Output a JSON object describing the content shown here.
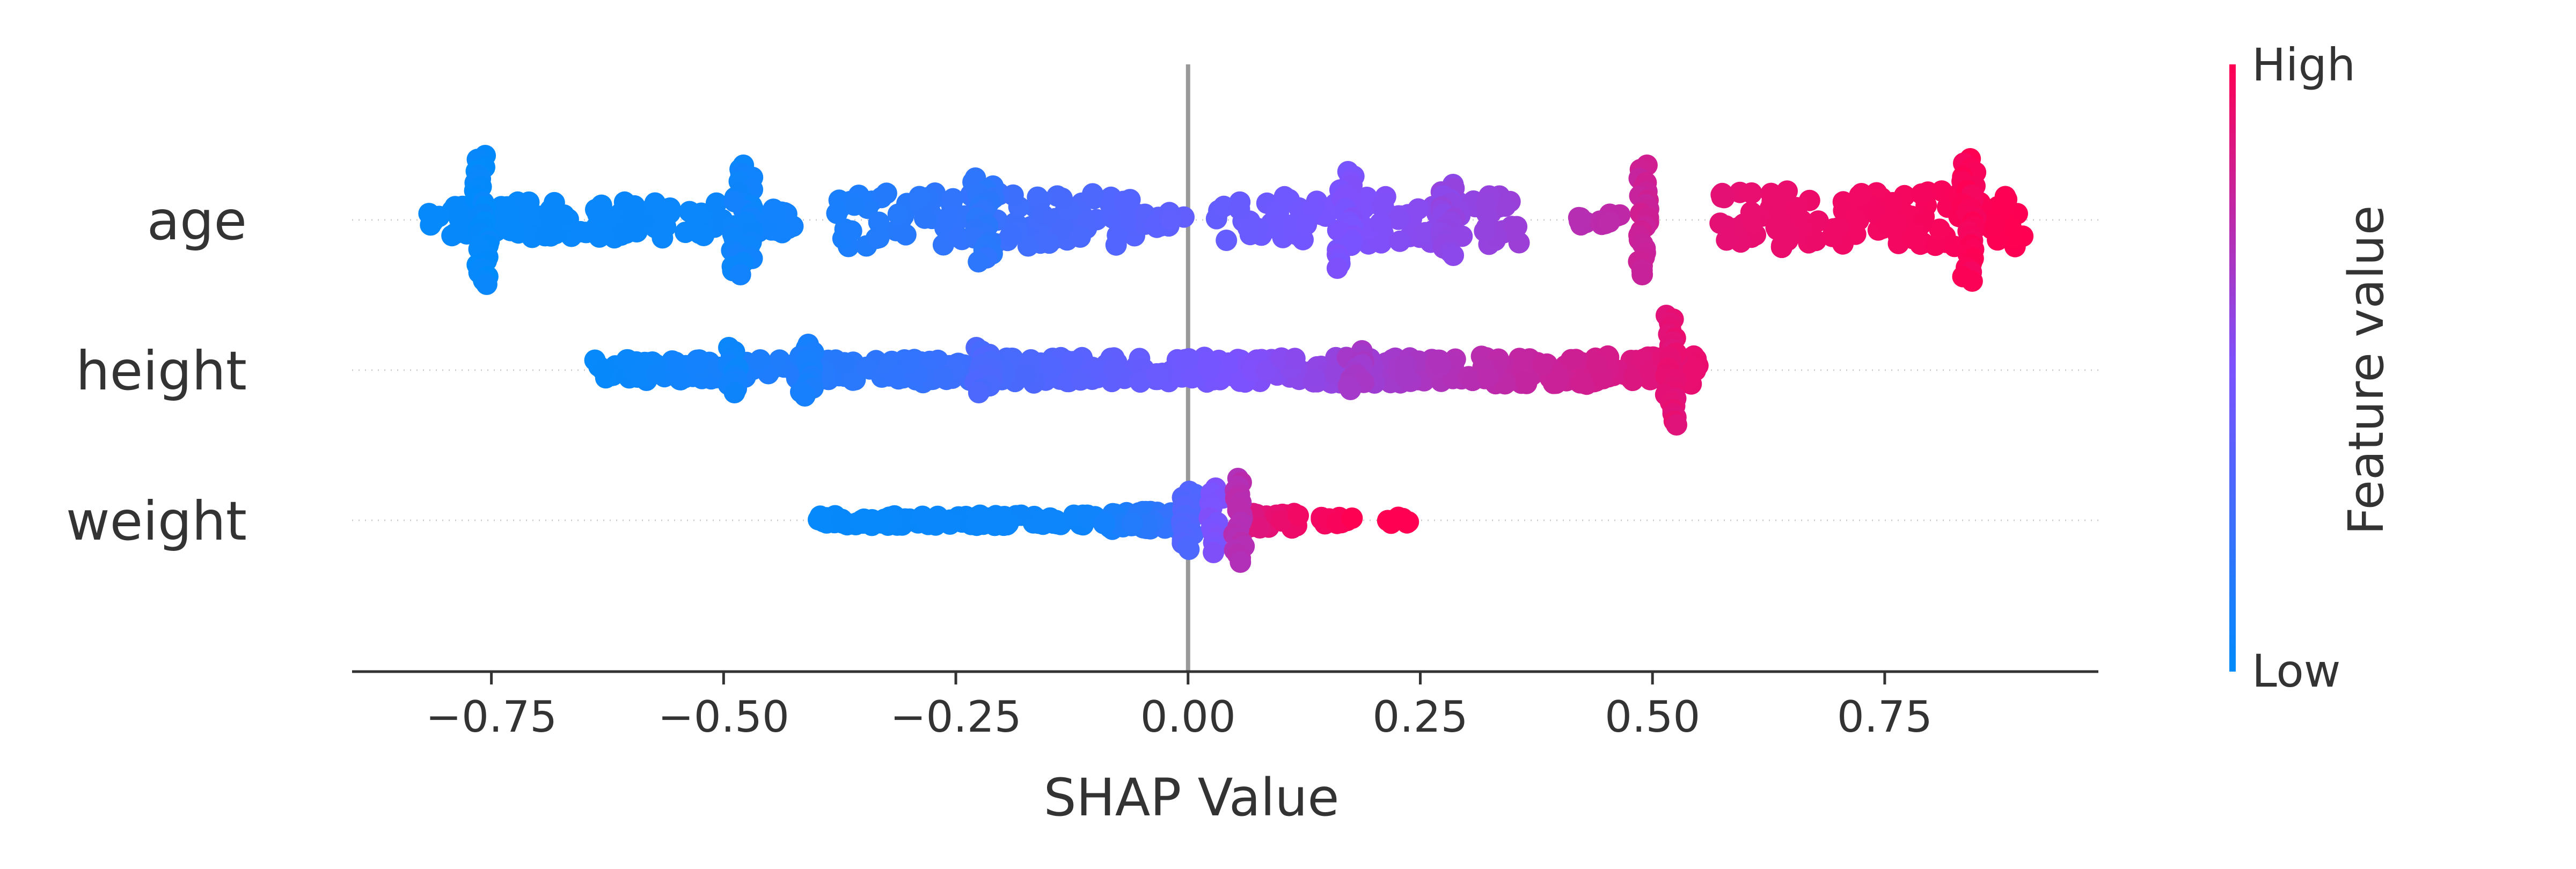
{
  "chart_data": {
    "type": "scatter",
    "subtype": "shap-beeswarm",
    "xlabel": "SHAP Value",
    "xlim": [
      -0.9,
      0.98
    ],
    "xticks": [
      -0.75,
      -0.5,
      -0.25,
      0.0,
      0.25,
      0.5,
      0.75
    ],
    "xtick_labels": [
      "−0.75",
      "−0.50",
      "−0.25",
      "0.00",
      "0.25",
      "0.50",
      "0.75"
    ],
    "zero_line": 0.0,
    "features": [
      {
        "name": "age",
        "clusters": [
          {
            "x": -0.76,
            "c": 0.02,
            "n": 34,
            "spread": 0.008,
            "h": 1.0
          },
          {
            "x": -0.48,
            "c": 0.06,
            "n": 28,
            "spread": 0.012,
            "h": 0.85
          },
          {
            "x": -0.22,
            "c": 0.18,
            "n": 22,
            "spread": 0.012,
            "h": 0.65
          },
          {
            "x": 0.17,
            "c": 0.5,
            "n": 22,
            "spread": 0.01,
            "h": 0.75
          },
          {
            "x": 0.28,
            "c": 0.58,
            "n": 20,
            "spread": 0.008,
            "h": 0.55
          },
          {
            "x": 0.49,
            "c": 0.8,
            "n": 26,
            "spread": 0.006,
            "h": 0.85
          },
          {
            "x": 0.84,
            "c": 0.98,
            "n": 28,
            "spread": 0.008,
            "h": 0.95
          }
        ],
        "bands": [
          {
            "x0": -0.82,
            "x1": -0.5,
            "c0": 0.02,
            "c1": 0.05,
            "n": 110,
            "h": 0.28
          },
          {
            "x0": -0.48,
            "x1": -0.42,
            "c0": 0.06,
            "c1": 0.08,
            "n": 30,
            "h": 0.2
          },
          {
            "x0": -0.38,
            "x1": -0.05,
            "c0": 0.1,
            "c1": 0.35,
            "n": 110,
            "h": 0.42
          },
          {
            "x0": -0.05,
            "x1": 0.0,
            "c0": 0.35,
            "c1": 0.4,
            "n": 12,
            "h": 0.12
          },
          {
            "x0": 0.03,
            "x1": 0.36,
            "c0": 0.4,
            "c1": 0.62,
            "n": 110,
            "h": 0.38
          },
          {
            "x0": 0.42,
            "x1": 0.47,
            "c0": 0.72,
            "c1": 0.76,
            "n": 14,
            "h": 0.1
          },
          {
            "x0": 0.57,
            "x1": 0.9,
            "c0": 0.9,
            "c1": 1.0,
            "n": 130,
            "h": 0.45
          }
        ]
      },
      {
        "name": "height",
        "clusters": [
          {
            "x": -0.49,
            "c": 0.06,
            "n": 12,
            "spread": 0.006,
            "h": 0.35
          },
          {
            "x": -0.41,
            "c": 0.1,
            "n": 14,
            "spread": 0.008,
            "h": 0.4
          },
          {
            "x": -0.22,
            "c": 0.3,
            "n": 14,
            "spread": 0.01,
            "h": 0.35
          },
          {
            "x": 0.18,
            "c": 0.65,
            "n": 12,
            "spread": 0.01,
            "h": 0.3
          },
          {
            "x": 0.52,
            "c": 0.9,
            "n": 30,
            "spread": 0.006,
            "h": 0.85
          }
        ],
        "bands": [
          {
            "x0": -0.64,
            "x1": -0.3,
            "c0": 0.02,
            "c1": 0.2,
            "n": 150,
            "h": 0.16
          },
          {
            "x0": -0.3,
            "x1": 0.0,
            "c0": 0.2,
            "c1": 0.45,
            "n": 140,
            "h": 0.2
          },
          {
            "x0": 0.0,
            "x1": 0.3,
            "c0": 0.45,
            "c1": 0.72,
            "n": 140,
            "h": 0.2
          },
          {
            "x0": 0.3,
            "x1": 0.55,
            "c0": 0.72,
            "c1": 0.92,
            "n": 120,
            "h": 0.22
          }
        ]
      },
      {
        "name": "weight",
        "clusters": [
          {
            "x": 0.0,
            "c": 0.32,
            "n": 20,
            "spread": 0.008,
            "h": 0.45
          },
          {
            "x": 0.03,
            "c": 0.5,
            "n": 14,
            "spread": 0.008,
            "h": 0.5
          },
          {
            "x": 0.055,
            "c": 0.72,
            "n": 22,
            "spread": 0.006,
            "h": 0.65
          }
        ],
        "bands": [
          {
            "x0": -0.4,
            "x1": -0.1,
            "c0": 0.02,
            "c1": 0.06,
            "n": 120,
            "h": 0.08
          },
          {
            "x0": -0.1,
            "x1": 0.0,
            "c0": 0.06,
            "c1": 0.25,
            "n": 60,
            "h": 0.14
          },
          {
            "x0": 0.06,
            "x1": 0.12,
            "c0": 0.85,
            "c1": 0.95,
            "n": 40,
            "h": 0.12
          },
          {
            "x0": 0.14,
            "x1": 0.18,
            "c0": 0.95,
            "c1": 1.0,
            "n": 10,
            "h": 0.06
          },
          {
            "x0": 0.21,
            "x1": 0.24,
            "c0": 1.0,
            "c1": 1.0,
            "n": 8,
            "h": 0.05
          }
        ]
      }
    ],
    "colorbar": {
      "label": "Feature value",
      "high_label": "High",
      "low_label": "Low",
      "low_color": "#008bfb",
      "high_color": "#ff0052"
    }
  }
}
